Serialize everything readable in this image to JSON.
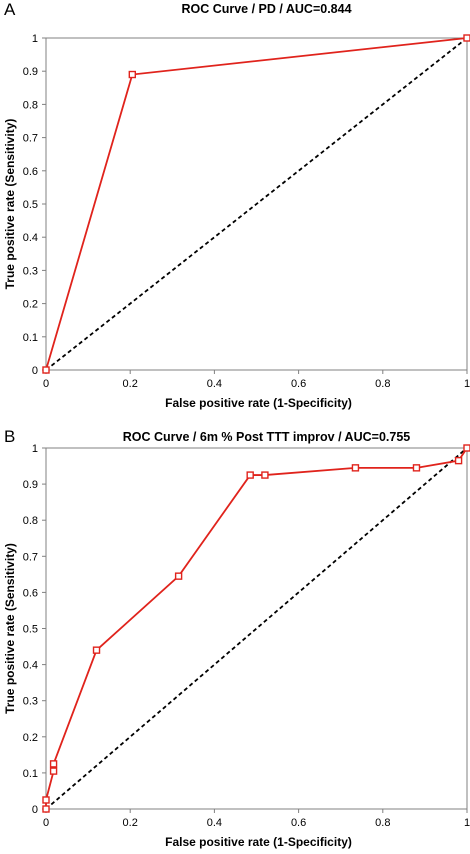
{
  "panels": [
    {
      "letter": "A"
    },
    {
      "letter": "B"
    }
  ],
  "colors": {
    "roc_line": "#e0231c",
    "reference_line": "#000000",
    "axis": "#808080"
  },
  "chart_data": [
    {
      "type": "line",
      "title": "ROC Curve / PD / AUC=0.844",
      "xlabel": "False positive rate (1-Specificity)",
      "ylabel": "True positive rate (Sensitivity)",
      "xlim": [
        0,
        1
      ],
      "ylim": [
        0,
        1
      ],
      "x_ticks": [
        "0",
        "0.2",
        "0.4",
        "0.6",
        "0.8",
        "1"
      ],
      "y_ticks": [
        "0",
        "0.1",
        "0.2",
        "0.3",
        "0.4",
        "0.5",
        "0.6",
        "0.7",
        "0.8",
        "0.9",
        "1"
      ],
      "grid": false,
      "series": [
        {
          "style": "line-with-square-markers",
          "color": "#e0231c",
          "x": [
            0,
            0.205,
            1
          ],
          "y": [
            0,
            0.89,
            1
          ]
        },
        {
          "style": "dashed-reference",
          "color": "#000000",
          "x": [
            0,
            1
          ],
          "y": [
            0,
            1
          ]
        }
      ]
    },
    {
      "type": "line",
      "title": "ROC Curve / 6m %  Post TTT improv / AUC=0.755",
      "xlabel": "False positive rate (1-Specificity)",
      "ylabel": "True positive rate (Sensitivity)",
      "xlim": [
        0,
        1
      ],
      "ylim": [
        0,
        1
      ],
      "x_ticks": [
        "0",
        "0.2",
        "0.4",
        "0.6",
        "0.8",
        "1"
      ],
      "y_ticks": [
        "0",
        "0.1",
        "0.2",
        "0.3",
        "0.4",
        "0.5",
        "0.6",
        "0.7",
        "0.8",
        "0.9",
        "1"
      ],
      "grid": false,
      "series": [
        {
          "style": "line-with-square-markers",
          "color": "#e0231c",
          "x": [
            0,
            0,
            0.018,
            0.018,
            0.12,
            0.315,
            0.485,
            0.52,
            0.735,
            0.88,
            0.98,
            1
          ],
          "y": [
            0,
            0.025,
            0.105,
            0.125,
            0.44,
            0.645,
            0.925,
            0.925,
            0.945,
            0.945,
            0.965,
            1
          ]
        },
        {
          "style": "dashed-reference",
          "color": "#000000",
          "x": [
            0,
            1
          ],
          "y": [
            0,
            1
          ]
        }
      ]
    }
  ]
}
